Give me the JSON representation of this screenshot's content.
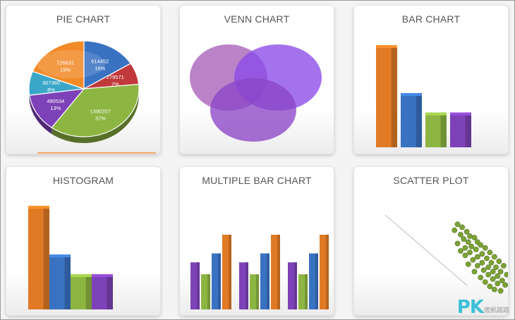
{
  "cards": {
    "pie": {
      "title": "PIE CHART"
    },
    "venn": {
      "title": "VENN CHART"
    },
    "bar": {
      "title": "BAR CHART"
    },
    "histogram": {
      "title": "HISTOGRAM"
    },
    "multibar": {
      "title": "MULTIPLE BAR CHART"
    },
    "scatter": {
      "title": "SCATTER PLOT"
    }
  },
  "watermark": {
    "logo": "PK",
    "sub": "痞凱踏踏"
  },
  "colors": {
    "orange": "#e07a25",
    "blue": "#3a72c2",
    "green": "#8db542",
    "purple": "#7e42b8",
    "teal": "#3aa7c9",
    "red": "#c0393b",
    "venn_a": "#a660b8",
    "venn_b": "#8a4ae8",
    "venn_c": "#8a45c6",
    "scatter": "#7ba335"
  },
  "chart_data": [
    {
      "type": "pie",
      "title": "PIE CHART",
      "slices": [
        {
          "value": 614452,
          "label": "614452",
          "pct": "16%",
          "color": "#3a72c2"
        },
        {
          "value": 279571,
          "label": "279571",
          "pct": "7%",
          "color": "#c0393b"
        },
        {
          "value": 1390207,
          "label": "1390207",
          "pct": "37%",
          "color": "#8db542"
        },
        {
          "value": 490534,
          "label": "490534",
          "pct": "13%",
          "color": "#7e42b8"
        },
        {
          "value": 307380,
          "label": "307380",
          "pct": "8%",
          "color": "#3aa7c9"
        },
        {
          "value": 726631,
          "label": "726631",
          "pct": "19%",
          "color": "#f28a28"
        }
      ]
    },
    {
      "type": "venn",
      "title": "VENN CHART",
      "sets": 3
    },
    {
      "type": "bar",
      "title": "BAR CHART",
      "values": [
        100,
        53,
        34,
        34
      ],
      "colors": [
        "#e07a25",
        "#3a72c2",
        "#8db542",
        "#7e42b8"
      ]
    },
    {
      "type": "bar",
      "title": "HISTOGRAM",
      "values": [
        100,
        53,
        34,
        34
      ],
      "colors": [
        "#e07a25",
        "#3a72c2",
        "#8db542",
        "#7e42b8"
      ]
    },
    {
      "type": "bar",
      "title": "MULTIPLE BAR CHART",
      "groups": 3,
      "series": [
        {
          "color": "#7e42b8",
          "values": [
            63,
            63,
            63
          ]
        },
        {
          "color": "#8db542",
          "values": [
            47,
            47,
            47
          ]
        },
        {
          "color": "#3a72c2",
          "values": [
            75,
            75,
            75
          ]
        },
        {
          "color": "#e07a25",
          "values": [
            100,
            100,
            100
          ]
        }
      ]
    },
    {
      "type": "scatter",
      "title": "SCATTER PLOT",
      "trend": true,
      "points": [
        [
          0.42,
          0.78
        ],
        [
          0.45,
          0.76
        ],
        [
          0.4,
          0.74
        ],
        [
          0.48,
          0.73
        ],
        [
          0.44,
          0.71
        ],
        [
          0.5,
          0.7
        ],
        [
          0.46,
          0.68
        ],
        [
          0.53,
          0.69
        ],
        [
          0.49,
          0.66
        ],
        [
          0.55,
          0.66
        ],
        [
          0.42,
          0.65
        ],
        [
          0.51,
          0.63
        ],
        [
          0.57,
          0.64
        ],
        [
          0.47,
          0.62
        ],
        [
          0.54,
          0.61
        ],
        [
          0.6,
          0.62
        ],
        [
          0.44,
          0.6
        ],
        [
          0.5,
          0.59
        ],
        [
          0.58,
          0.58
        ],
        [
          0.63,
          0.59
        ],
        [
          0.47,
          0.57
        ],
        [
          0.55,
          0.56
        ],
        [
          0.61,
          0.55
        ],
        [
          0.66,
          0.56
        ],
        [
          0.52,
          0.54
        ],
        [
          0.58,
          0.52
        ],
        [
          0.64,
          0.52
        ],
        [
          0.69,
          0.53
        ],
        [
          0.49,
          0.51
        ],
        [
          0.55,
          0.5
        ],
        [
          0.62,
          0.49
        ],
        [
          0.67,
          0.49
        ],
        [
          0.72,
          0.5
        ],
        [
          0.59,
          0.47
        ],
        [
          0.65,
          0.46
        ],
        [
          0.7,
          0.46
        ],
        [
          0.53,
          0.46
        ],
        [
          0.62,
          0.44
        ],
        [
          0.68,
          0.43
        ],
        [
          0.74,
          0.44
        ],
        [
          0.57,
          0.42
        ],
        [
          0.65,
          0.41
        ],
        [
          0.71,
          0.4
        ],
        [
          0.6,
          0.39
        ],
        [
          0.68,
          0.38
        ],
        [
          0.63,
          0.36
        ],
        [
          0.73,
          0.37
        ],
        [
          0.66,
          0.34
        ],
        [
          0.7,
          0.33
        ]
      ]
    }
  ]
}
